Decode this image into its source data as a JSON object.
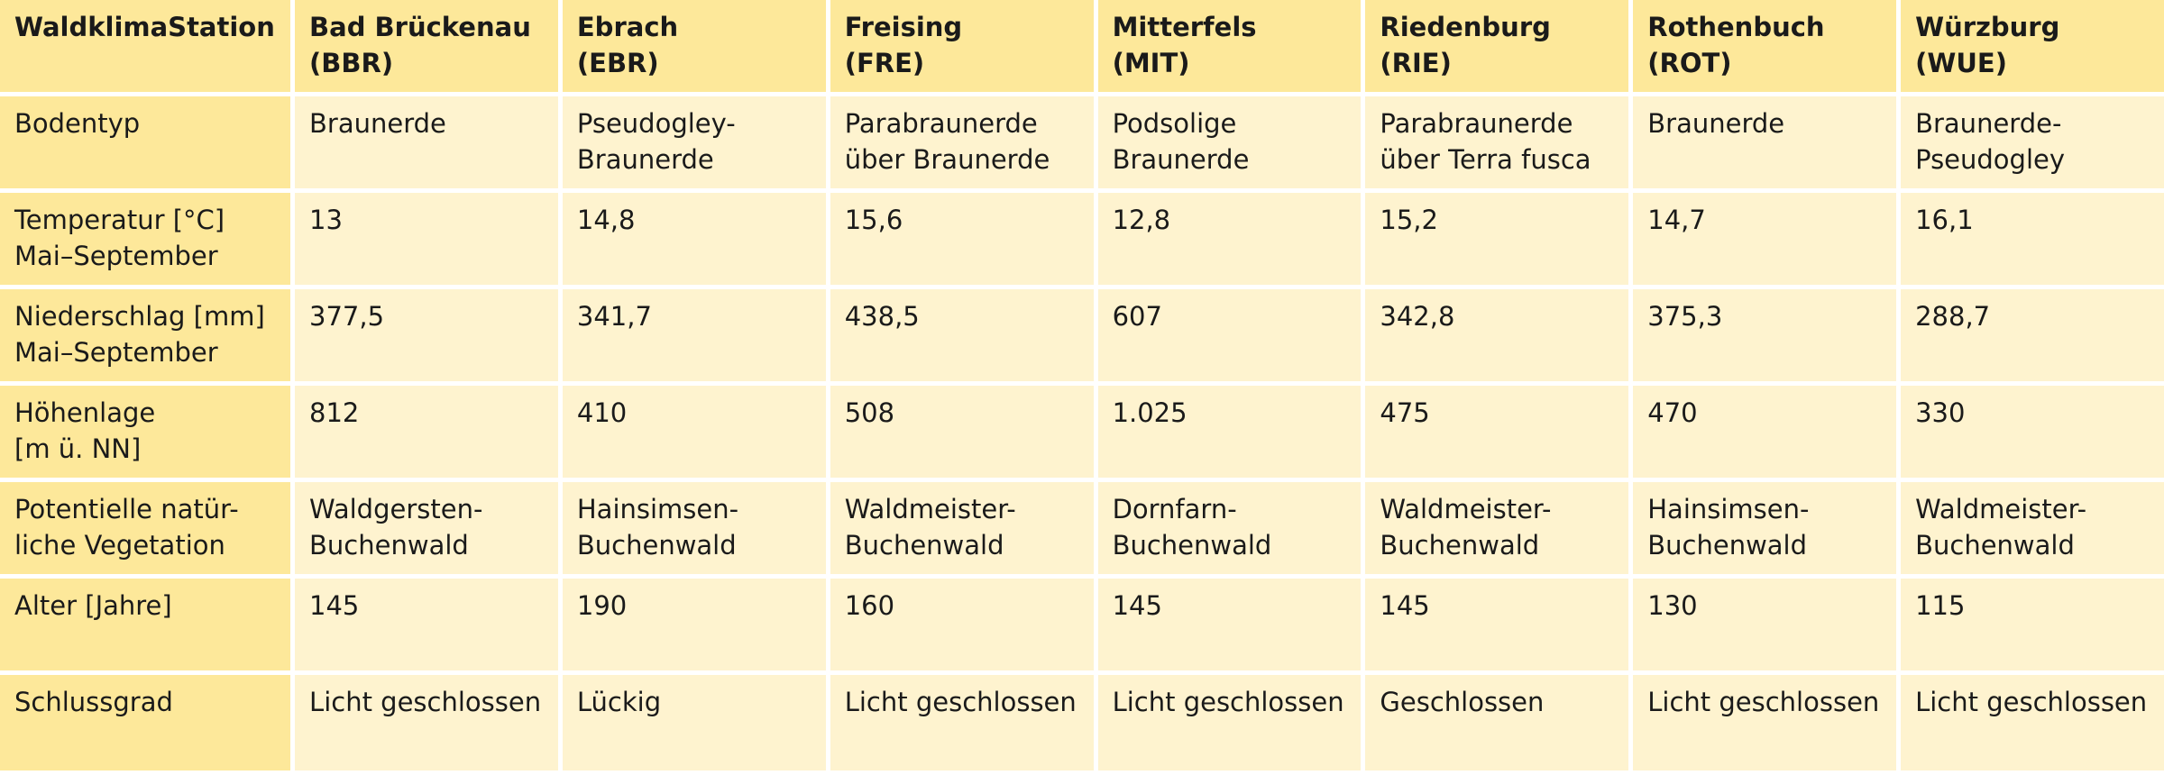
{
  "table": {
    "corner_label": "WaldklimaStation",
    "stations": [
      {
        "name": "Bad Brückenau",
        "code": "(BBR)"
      },
      {
        "name": "Ebrach",
        "code": "(EBR)"
      },
      {
        "name": "Freising",
        "code": "(FRE)"
      },
      {
        "name": "Mitterfels",
        "code": "(MIT)"
      },
      {
        "name": "Riedenburg",
        "code": "(RIE)"
      },
      {
        "name": "Rothenbuch",
        "code": "(ROT)"
      },
      {
        "name": "Würzburg",
        "code": "(WUE)"
      }
    ],
    "rows": [
      {
        "label": "Bodentyp",
        "cells": [
          "Braunerde",
          "Pseudogley-\nBraunerde",
          "Parabraunerde\nüber Braunerde",
          "Podsolige\nBraunerde",
          "Parabraunerde\nüber Terra fusca",
          "Braunerde",
          "Braunerde-\nPseudogley"
        ]
      },
      {
        "label": "Temperatur [°C]\nMai–September",
        "cells": [
          "13",
          "14,8",
          "15,6",
          "12,8",
          "15,2",
          "14,7",
          "16,1"
        ]
      },
      {
        "label": "Niederschlag [mm]\nMai–September",
        "cells": [
          "377,5",
          "341,7",
          "438,5",
          "607",
          "342,8",
          "375,3",
          "288,7"
        ]
      },
      {
        "label": "Höhenlage\n[m ü. NN]",
        "cells": [
          "812",
          "410",
          "508",
          "1.025",
          "475",
          "470",
          "330"
        ]
      },
      {
        "label": "Potentielle natür-\nliche Vegetation",
        "cells": [
          "Waldgersten-\nBuchenwald",
          "Hainsimsen-\nBuchenwald",
          "Waldmeister-\nBuchenwald",
          "Dornfarn-\nBuchenwald",
          "Waldmeister-\nBuchenwald",
          "Hainsimsen-\nBuchenwald",
          "Waldmeister-\nBuchenwald"
        ]
      },
      {
        "label": "Alter [Jahre]",
        "cells": [
          "145",
          "190",
          "160",
          "145",
          "145",
          "130",
          "115"
        ]
      },
      {
        "label": "Schlussgrad",
        "cells": [
          "Licht geschlossen",
          "Lückig",
          "Licht geschlossen",
          "Licht geschlossen",
          "Geschlossen",
          "Licht geschlossen",
          "Licht geschlossen"
        ]
      }
    ]
  },
  "colors": {
    "header_fill": "#fde89a",
    "cell_fill": "#fef3cf",
    "gap": "#ffffff"
  }
}
